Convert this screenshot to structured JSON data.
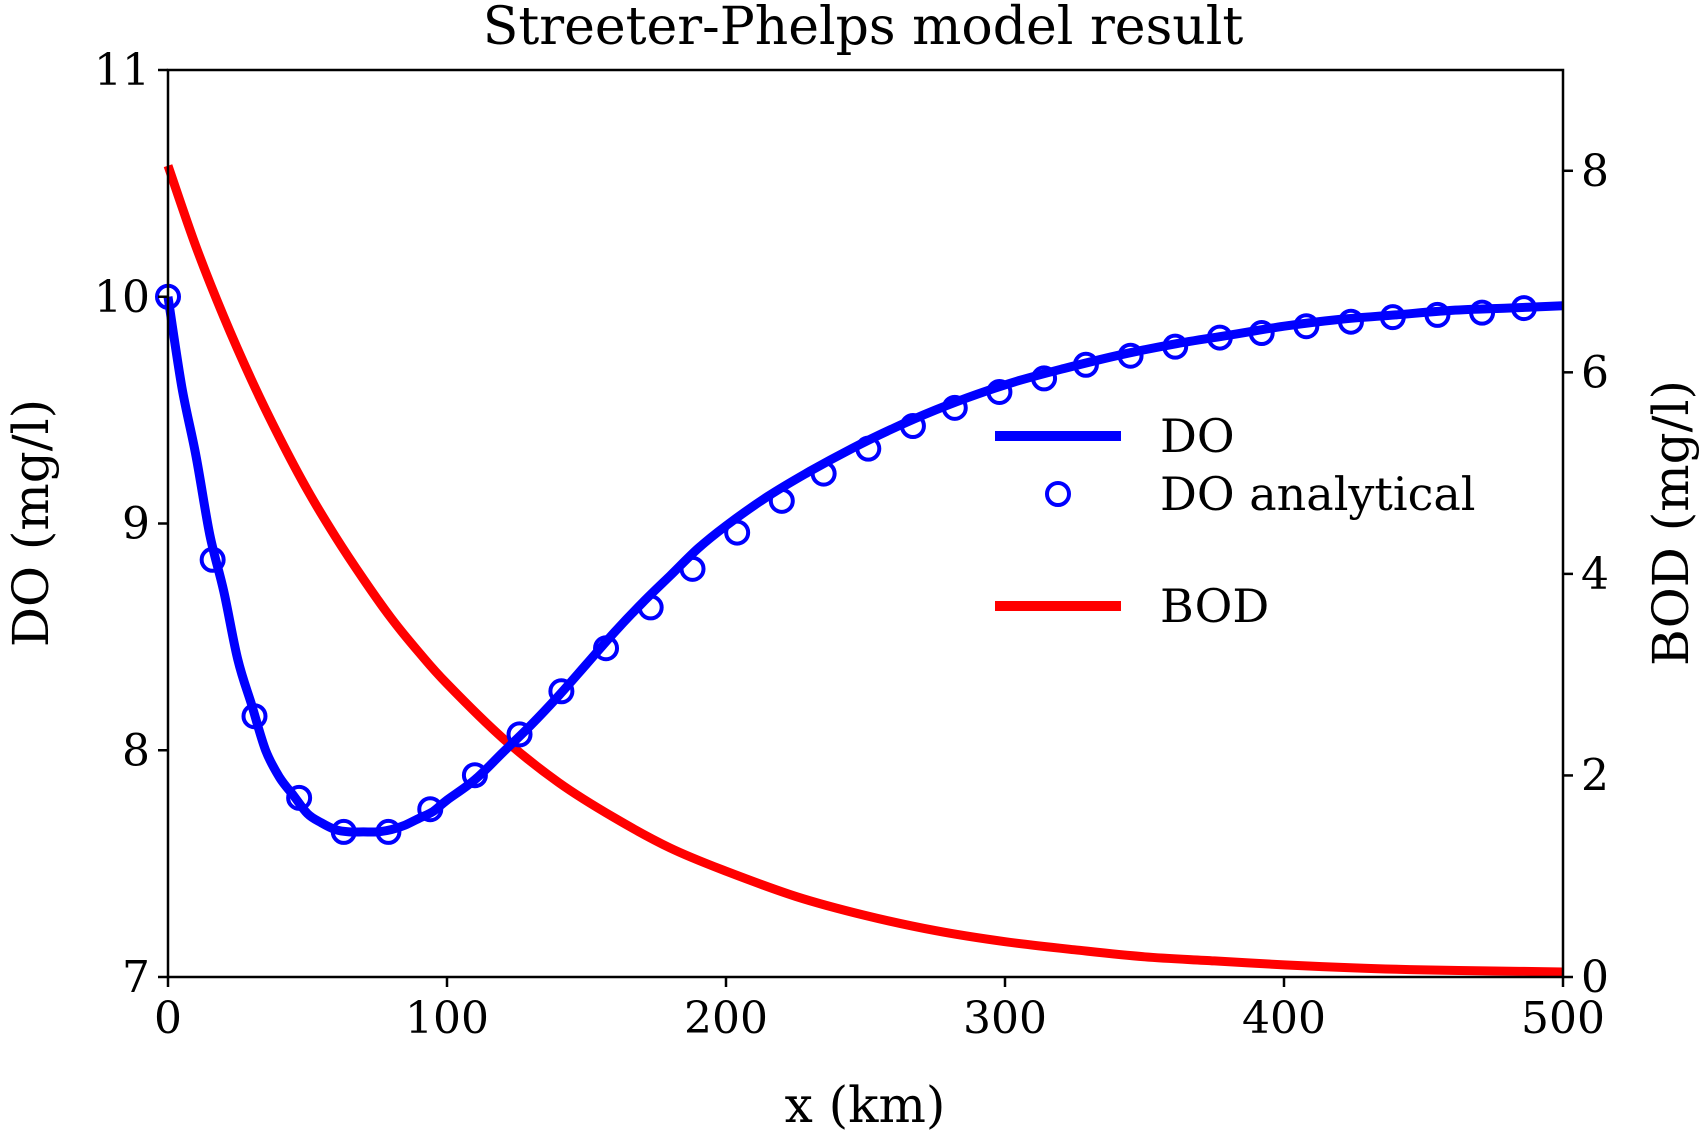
{
  "chart_data": {
    "type": "line",
    "title": "Streeter-Phelps model result",
    "xlabel": "x (km)",
    "ylabel_left": "DO (mg/l)",
    "ylabel_right": "BOD (mg/l)",
    "xlim": [
      0,
      500
    ],
    "ylim_left": [
      7,
      11
    ],
    "ylim_right": [
      0,
      9
    ],
    "x_ticks": [
      "0",
      "100",
      "200",
      "300",
      "400",
      "500"
    ],
    "y_ticks_left": [
      "7",
      "8",
      "9",
      "10",
      "11"
    ],
    "y_ticks_right": [
      "0",
      "2",
      "4",
      "6",
      "8"
    ],
    "grid": false,
    "legend_position": "center-right",
    "series": [
      {
        "name": "DO",
        "axis": "left",
        "style": "line",
        "color": "#0000ff",
        "x": [
          0,
          5,
          10,
          15,
          20,
          25,
          30,
          35,
          40,
          45,
          50,
          55,
          60,
          65,
          70,
          75,
          80,
          85,
          90,
          95,
          100,
          110,
          120,
          130,
          140,
          150,
          160,
          170,
          180,
          190,
          200,
          215,
          230,
          245,
          260,
          275,
          290,
          305,
          320,
          340,
          360,
          380,
          400,
          420,
          440,
          460,
          480,
          500
        ],
        "y": [
          10.0,
          9.6,
          9.3,
          8.95,
          8.7,
          8.4,
          8.2,
          8.0,
          7.88,
          7.8,
          7.72,
          7.68,
          7.65,
          7.64,
          7.64,
          7.64,
          7.65,
          7.67,
          7.7,
          7.73,
          7.78,
          7.87,
          7.99,
          8.11,
          8.24,
          8.38,
          8.52,
          8.65,
          8.77,
          8.89,
          8.99,
          9.12,
          9.23,
          9.33,
          9.42,
          9.5,
          9.57,
          9.63,
          9.68,
          9.74,
          9.79,
          9.83,
          9.87,
          9.9,
          9.92,
          9.94,
          9.95,
          9.96
        ]
      },
      {
        "name": "DO analytical",
        "axis": "left",
        "style": "markers",
        "color": "#0000ff",
        "x": [
          0,
          16,
          31,
          47,
          63,
          79,
          94,
          110,
          126,
          141,
          157,
          173,
          188,
          204,
          220,
          235,
          251,
          267,
          282,
          298,
          314,
          329,
          345,
          361,
          377,
          392,
          408,
          424,
          439,
          455,
          471,
          486
        ],
        "y": [
          10.0,
          8.84,
          8.15,
          7.79,
          7.64,
          7.64,
          7.74,
          7.89,
          8.07,
          8.26,
          8.45,
          8.63,
          8.8,
          8.96,
          9.1,
          9.22,
          9.33,
          9.43,
          9.51,
          9.58,
          9.64,
          9.7,
          9.74,
          9.78,
          9.82,
          9.84,
          9.87,
          9.89,
          9.91,
          9.92,
          9.93,
          9.95
        ]
      },
      {
        "name": "BOD",
        "axis": "right",
        "style": "line",
        "color": "#ff0000",
        "x": [
          0,
          10,
          20,
          30,
          40,
          50,
          60,
          70,
          80,
          90,
          100,
          120,
          140,
          160,
          180,
          200,
          225,
          250,
          275,
          300,
          325,
          350,
          375,
          400,
          425,
          450,
          475,
          500
        ],
        "y": [
          8.05,
          7.25,
          6.55,
          5.92,
          5.35,
          4.83,
          4.37,
          3.95,
          3.56,
          3.22,
          2.91,
          2.37,
          1.93,
          1.58,
          1.28,
          1.05,
          0.8,
          0.61,
          0.46,
          0.35,
          0.27,
          0.2,
          0.16,
          0.12,
          0.09,
          0.07,
          0.06,
          0.05
        ]
      }
    ]
  }
}
